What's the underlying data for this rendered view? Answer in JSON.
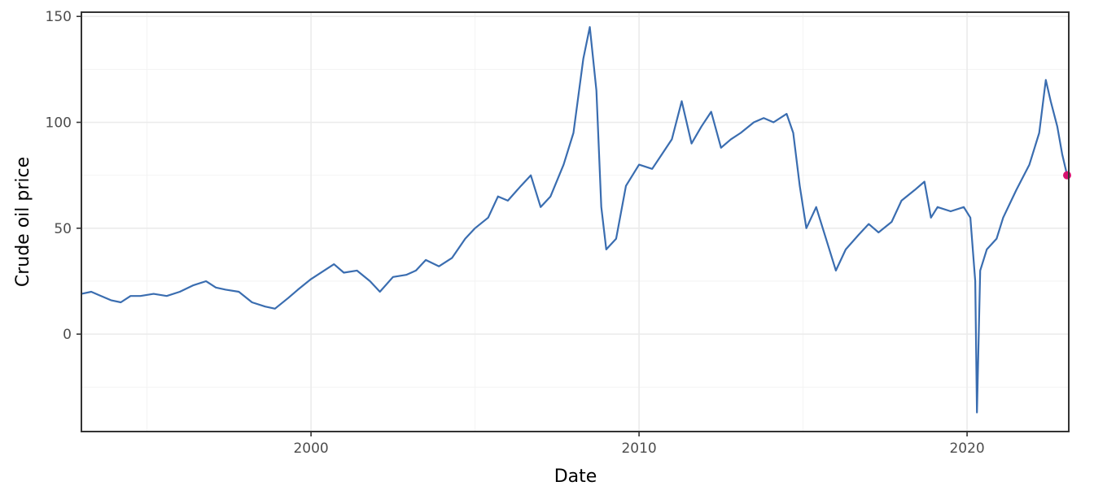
{
  "chart_data": {
    "type": "line",
    "title": "",
    "xlabel": "Date",
    "ylabel": "Crude oil price",
    "xlim": [
      1993.0,
      2023.1
    ],
    "ylim": [
      -46,
      152
    ],
    "x_ticks": [
      2000,
      2010,
      2020
    ],
    "x_tick_labels": [
      "2000",
      "2010",
      "2020"
    ],
    "y_ticks": [
      0,
      50,
      100,
      150
    ],
    "y_tick_labels": [
      "0",
      "50",
      "100",
      "150"
    ],
    "grid": true,
    "legend": "none",
    "colors": {
      "line": "#3a6db0",
      "last_point": "#d6116f"
    },
    "series": [
      {
        "x": [
          1993.0,
          1993.3,
          1993.6,
          1993.9,
          1994.2,
          1994.5,
          1994.8,
          1995.2,
          1995.6,
          1996.0,
          1996.4,
          1996.8,
          1997.1,
          1997.4,
          1997.8,
          1998.2,
          1998.6,
          1998.9,
          1999.3,
          1999.6,
          2000.0,
          2000.4,
          2000.7,
          2001.0,
          2001.4,
          2001.8,
          2002.1,
          2002.5,
          2002.9,
          2003.2,
          2003.5,
          2003.9,
          2004.3,
          2004.7,
          2005.0,
          2005.4,
          2005.7,
          2006.0,
          2006.4,
          2006.7,
          2007.0,
          2007.3,
          2007.7,
          2008.0,
          2008.3,
          2008.5,
          2008.7,
          2008.85,
          2009.0,
          2009.3,
          2009.6,
          2010.0,
          2010.4,
          2010.7,
          2011.0,
          2011.3,
          2011.6,
          2011.9,
          2012.2,
          2012.5,
          2012.8,
          2013.1,
          2013.5,
          2013.8,
          2014.1,
          2014.5,
          2014.7,
          2014.9,
          2015.1,
          2015.4,
          2015.7,
          2016.0,
          2016.3,
          2016.7,
          2017.0,
          2017.3,
          2017.7,
          2018.0,
          2018.4,
          2018.7,
          2018.9,
          2019.1,
          2019.5,
          2019.9,
          2020.1,
          2020.25,
          2020.3,
          2020.4,
          2020.6,
          2020.9,
          2021.1,
          2021.5,
          2021.9,
          2022.2,
          2022.4,
          2022.55,
          2022.75,
          2022.9,
          2023.05
        ],
        "y": [
          19,
          20,
          18,
          16,
          15,
          18,
          18,
          19,
          18,
          20,
          23,
          25,
          22,
          21,
          20,
          15,
          13,
          12,
          17,
          21,
          26,
          30,
          33,
          29,
          30,
          25,
          20,
          27,
          28,
          30,
          35,
          32,
          36,
          45,
          50,
          55,
          65,
          63,
          70,
          75,
          60,
          65,
          80,
          95,
          130,
          145,
          115,
          60,
          40,
          45,
          70,
          80,
          78,
          85,
          92,
          110,
          90,
          98,
          105,
          88,
          92,
          95,
          100,
          102,
          100,
          104,
          95,
          70,
          50,
          60,
          45,
          30,
          40,
          47,
          52,
          48,
          53,
          63,
          68,
          72,
          55,
          60,
          58,
          60,
          55,
          25,
          -37,
          30,
          40,
          45,
          55,
          68,
          80,
          95,
          120,
          110,
          98,
          85,
          75
        ]
      }
    ],
    "highlight_point": {
      "x": 2023.05,
      "y": 75
    }
  }
}
